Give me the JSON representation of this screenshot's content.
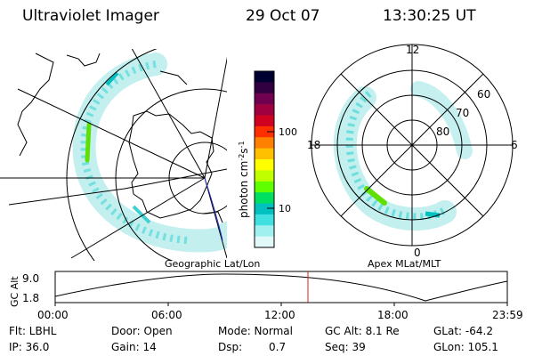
{
  "header": {
    "instrument": "Ultraviolet Imager",
    "date": "29 Oct 07",
    "time": "13:30:25 UT"
  },
  "left_panel": {
    "label": "Geographic Lat/Lon"
  },
  "colorbar": {
    "unit_label": "photon cm",
    "unit_exp1": "-2",
    "unit_mid": "s",
    "unit_exp2": "-1",
    "ticks": [
      "100",
      "10"
    ],
    "colors": [
      "#000030",
      "#300040",
      "#700050",
      "#a00040",
      "#d00020",
      "#ff3000",
      "#ff8000",
      "#ffc000",
      "#ffff00",
      "#c0ff00",
      "#60ff00",
      "#00e060",
      "#00c0c0",
      "#40e0e0",
      "#a0f0f0",
      "#e0f8f8"
    ]
  },
  "right_panel": {
    "label": "Apex MLat/MLT",
    "mlt_labels": {
      "top": "12",
      "left": "18",
      "right": "6",
      "bottom": "0"
    },
    "lat_labels": [
      "60",
      "70",
      "80"
    ]
  },
  "timeline": {
    "ylabel": "GC Alt",
    "ytick_top": "9.0",
    "ytick_bottom": "1.8",
    "xticks": [
      "00:00",
      "06:00",
      "12:00",
      "18:00",
      "23:59"
    ]
  },
  "info": {
    "flt": "Flt: LBHL",
    "ip": "IP: 36.0",
    "door": "Door: Open",
    "gain": "Gain: 14",
    "mode": "Mode: Normal",
    "dsp_label": "Dsp:",
    "dsp_value": "0.7",
    "gcalt": "GC Alt: 8.1 Re",
    "seq": "Seq: 39",
    "glat": "GLat: -64.2",
    "glon": "GLon: 105.1"
  }
}
